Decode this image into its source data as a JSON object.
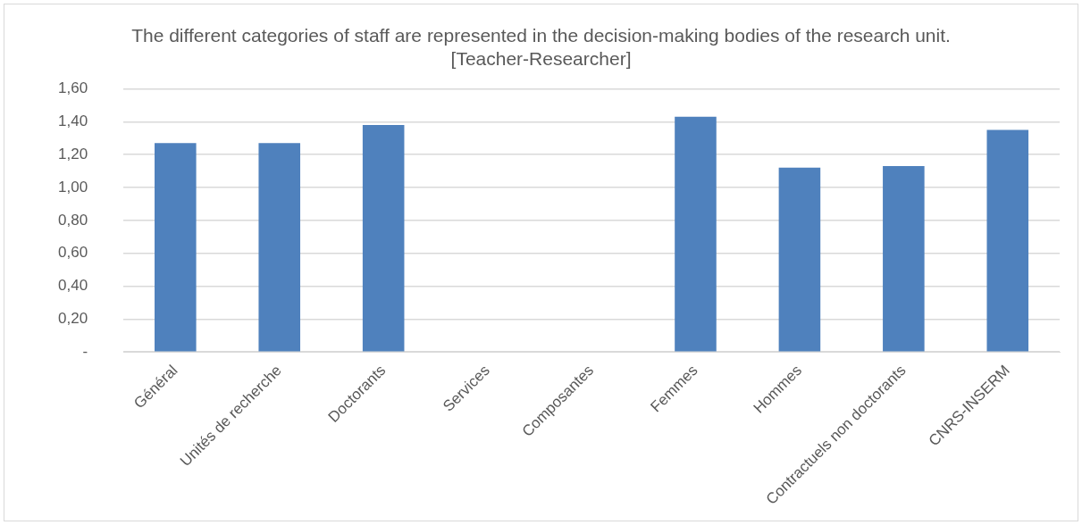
{
  "chart_data": {
    "type": "bar",
    "title": "The different categories of staff are represented in the decision-making bodies of the research unit. [Teacher-Researcher]",
    "categories": [
      "Général",
      "Unités de recherche",
      "Doctorants",
      "Services",
      "Composantes",
      "Femmes",
      "Hommes",
      "Contractuels non doctorants",
      "CNRS-INSERM"
    ],
    "values": [
      1.27,
      1.27,
      1.38,
      null,
      null,
      1.43,
      1.12,
      1.13,
      1.35
    ],
    "color": "#4f81bd",
    "ylim": [
      0,
      1.6
    ],
    "yticks": [
      {
        "value": 0,
        "label": "-"
      },
      {
        "value": 0.2,
        "label": "0,20"
      },
      {
        "value": 0.4,
        "label": "0,40"
      },
      {
        "value": 0.6,
        "label": "0,60"
      },
      {
        "value": 0.8,
        "label": "0,80"
      },
      {
        "value": 1.0,
        "label": "1,00"
      },
      {
        "value": 1.2,
        "label": "1,20"
      },
      {
        "value": 1.4,
        "label": "1,40"
      },
      {
        "value": 1.6,
        "label": "1,60"
      }
    ],
    "grid": "y",
    "legend": false
  }
}
